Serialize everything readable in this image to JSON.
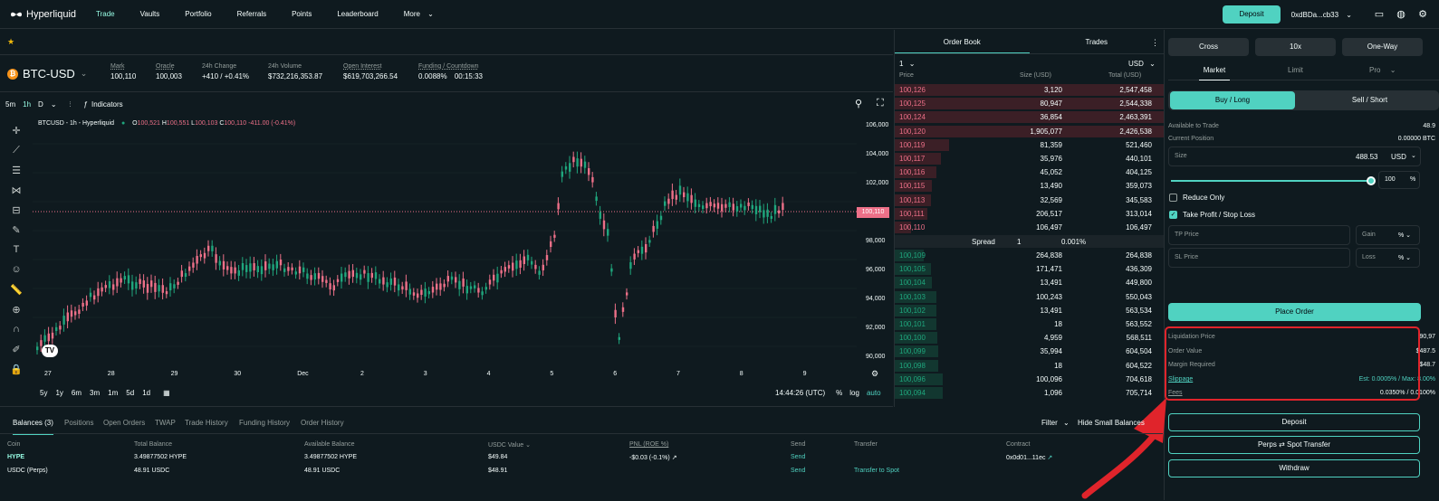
{
  "topbar": {
    "brand": "Hyperliquid",
    "nav": [
      "Trade",
      "Vaults",
      "Portfolio",
      "Referrals",
      "Points",
      "Leaderboard",
      "More"
    ],
    "deposit": "Deposit",
    "address": "0xdBDa...cb33"
  },
  "ticker": {
    "symbol": "BTC-USD",
    "mark_label": "Mark",
    "mark": "100,110",
    "oracle_label": "Oracle",
    "oracle": "100,003",
    "change_label": "24h Change",
    "change": "+410 / +0.41%",
    "volume_label": "24h Volume",
    "volume": "$732,216,353.87",
    "oi_label": "Open Interest",
    "oi": "$619,703,266.54",
    "funding_label": "Funding / Countdown",
    "funding": "0.0088%",
    "countdown": "00:15:33"
  },
  "chart": {
    "timeframes": [
      "5m",
      "1h",
      "D"
    ],
    "indicators": "Indicators",
    "legend_title": "BTCUSD - 1h - Hyperliquid",
    "o": "100,521",
    "h": "100,551",
    "l": "100,103",
    "c": "100,110",
    "chg": "-411.00 (-0.41%)",
    "price_tag": "100,110",
    "y_ticks": [
      "106,000",
      "104,000",
      "102,000",
      "100,000",
      "98,000",
      "96,000",
      "94,000",
      "92,000",
      "90,000"
    ],
    "x_ticks": [
      "27",
      "28",
      "29",
      "30",
      "Dec",
      "2",
      "3",
      "4",
      "5",
      "6",
      "7",
      "8",
      "9"
    ],
    "ranges": [
      "5y",
      "1y",
      "6m",
      "3m",
      "1m",
      "5d",
      "1d"
    ],
    "time": "14:44:26 (UTC)",
    "pct": "%",
    "log": "log",
    "auto": "auto"
  },
  "orderbook": {
    "tab1": "Order Book",
    "tab2": "Trades",
    "group": "1",
    "currency": "USD",
    "h_price": "Price",
    "h_size": "Size (USD)",
    "h_total": "Total (USD)",
    "asks": [
      [
        "100,126",
        "3,120",
        "2,547,458"
      ],
      [
        "100,125",
        "80,947",
        "2,544,338"
      ],
      [
        "100,124",
        "36,854",
        "2,463,391"
      ],
      [
        "100,120",
        "1,905,077",
        "2,426,538"
      ],
      [
        "100,119",
        "81,359",
        "521,460"
      ],
      [
        "100,117",
        "35,976",
        "440,101"
      ],
      [
        "100,116",
        "45,052",
        "404,125"
      ],
      [
        "100,115",
        "13,490",
        "359,073"
      ],
      [
        "100,113",
        "32,569",
        "345,583"
      ],
      [
        "100,111",
        "206,517",
        "313,014"
      ],
      [
        "100,110",
        "106,497",
        "106,497"
      ]
    ],
    "spread_label": "Spread",
    "spread": "1",
    "spread_pct": "0.001%",
    "bids": [
      [
        "100,109",
        "264,838",
        "264,838"
      ],
      [
        "100,105",
        "171,471",
        "436,309"
      ],
      [
        "100,104",
        "13,491",
        "449,800"
      ],
      [
        "100,103",
        "100,243",
        "550,043"
      ],
      [
        "100,102",
        "13,491",
        "563,534"
      ],
      [
        "100,101",
        "18",
        "563,552"
      ],
      [
        "100,100",
        "4,959",
        "568,511"
      ],
      [
        "100,099",
        "35,994",
        "604,504"
      ],
      [
        "100,098",
        "18",
        "604,522"
      ],
      [
        "100,096",
        "100,096",
        "704,618"
      ],
      [
        "100,094",
        "1,096",
        "705,714"
      ]
    ]
  },
  "trade": {
    "cross": "Cross",
    "lev": "10x",
    "mode": "One-Way",
    "t_market": "Market",
    "t_limit": "Limit",
    "t_pro": "Pro",
    "buy": "Buy / Long",
    "sell": "Sell / Short",
    "avail_label": "Available to Trade",
    "avail": "48.9",
    "pos_label": "Current Position",
    "pos": "0.00000 BTC",
    "size_label": "Size",
    "size": "488.53",
    "size_ccy": "USD",
    "slider_pct": 1.0,
    "pct_val": "100",
    "pct_sym": "%",
    "reduce": "Reduce Only",
    "tpsl": "Take Profit / Stop Loss",
    "tp": "TP Price",
    "gain": "Gain",
    "sl": "SL Price",
    "loss": "Loss",
    "place": "Place Order",
    "liq_label": "Liquidation Price",
    "liq": "90,97",
    "ov_label": "Order Value",
    "ov": "$487.5",
    "mr_label": "Margin Required",
    "mr": "$48.7",
    "slip_label": "Slippage",
    "slip": "Est: 0.0005% / Max: 8.00%",
    "fees_label": "Fees",
    "fees": "0.0350% / 0.0100%",
    "deposit": "Deposit",
    "transfer": "Perps ⇄ Spot Transfer",
    "withdraw": "Withdraw"
  },
  "bottom": {
    "tabs": [
      "Balances (3)",
      "Positions",
      "Open Orders",
      "TWAP",
      "Trade History",
      "Funding History",
      "Order History"
    ],
    "filter": "Filter",
    "hide_small": "Hide Small Balances",
    "headers": [
      "Coin",
      "Total Balance",
      "Available Balance",
      "USDC Value",
      "PNL (ROE %)",
      "Send",
      "Transfer",
      "Contract"
    ],
    "rows": [
      {
        "coin": "HYPE",
        "total": "3.49877502 HYPE",
        "avail": "3.49877502 HYPE",
        "usdc": "$49.84",
        "pnl": "-$0.03 (-0.1%)",
        "send": "Send",
        "transfer": "",
        "contract": "0x0d01...11ec"
      },
      {
        "coin": "USDC (Perps)",
        "total": "48.91 USDC",
        "avail": "48.91 USDC",
        "usdc": "$48.91",
        "pnl": "",
        "send": "Send",
        "transfer": "Transfer to Spot",
        "contract": ""
      }
    ]
  },
  "colors": {
    "accent": "#50d2c1",
    "green": "#1fa67d",
    "red": "#ed7088",
    "annotation": "#e0242b"
  }
}
